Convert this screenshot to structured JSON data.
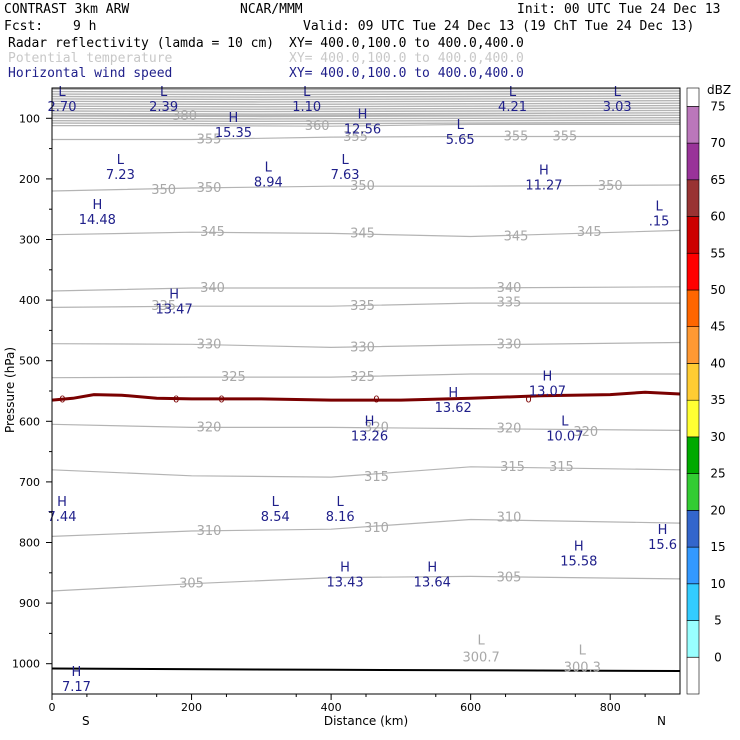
{
  "header": {
    "model": "CONTRAST  3km ARW",
    "center": "NCAR/MMM",
    "init": "Init: 00 UTC Tue 24 Dec 13",
    "fcst_label": "Fcst:",
    "fcst_value": "9 h",
    "valid": "Valid: 09 UTC Tue 24 Dec 13 (19 ChT Tue 24 Dec 13)"
  },
  "legend": [
    {
      "name": "Radar reflectivity (lamda = 10 cm)",
      "xy": "XY= 400.0,100.0 to 400.0,400.0",
      "color": "#000000"
    },
    {
      "name": "Potential temperature",
      "xy": "XY= 400.0,100.0 to 400.0,400.0",
      "color": "#c8c8c8"
    },
    {
      "name": "Horizontal wind speed",
      "xy": "XY= 400.0,100.0 to 400.0,400.0",
      "color": "#1f1f8a"
    }
  ],
  "chart_data": {
    "type": "cross-section",
    "xlabel": "Distance (km)",
    "ylabel": "Pressure (hPa)",
    "xlim": [
      0,
      900
    ],
    "ylim": [
      1050,
      50
    ],
    "x_ticks": [
      0,
      200,
      400,
      600,
      800
    ],
    "y_ticks": [
      100,
      200,
      300,
      400,
      500,
      600,
      700,
      800,
      900,
      1000
    ],
    "x_endpoints": {
      "left": "S",
      "right": "N"
    },
    "colorbar": {
      "unit": "dBZ",
      "levels": [
        0,
        5,
        10,
        15,
        20,
        25,
        30,
        35,
        40,
        45,
        50,
        55,
        60,
        65,
        70,
        75
      ],
      "colors": [
        "#ffffff",
        "#99ffff",
        "#33ccff",
        "#3399ff",
        "#3366cc",
        "#33cc33",
        "#00aa00",
        "#ffff33",
        "#ffcc33",
        "#ff9933",
        "#ff6600",
        "#ff0000",
        "#cc0000",
        "#993333",
        "#993399",
        "#bb77bb"
      ]
    },
    "theta_contours": [
      {
        "value": 305,
        "labels": [
          [
            200,
            868
          ],
          [
            655,
            858
          ]
        ],
        "points": [
          [
            0,
            880
          ],
          [
            200,
            868
          ],
          [
            400,
            858
          ],
          [
            600,
            856
          ],
          [
            900,
            860
          ]
        ]
      },
      {
        "value": 310,
        "labels": [
          [
            225,
            781
          ],
          [
            465,
            776
          ],
          [
            655,
            759
          ]
        ],
        "points": [
          [
            0,
            790
          ],
          [
            200,
            781
          ],
          [
            400,
            778
          ],
          [
            600,
            762
          ],
          [
            900,
            768
          ]
        ]
      },
      {
        "value": 315,
        "labels": [
          [
            465,
            692
          ],
          [
            660,
            675
          ],
          [
            730,
            675
          ]
        ],
        "points": [
          [
            0,
            680
          ],
          [
            200,
            690
          ],
          [
            400,
            692
          ],
          [
            600,
            675
          ],
          [
            900,
            680
          ]
        ]
      },
      {
        "value": 320,
        "labels": [
          [
            225,
            610
          ],
          [
            465,
            610
          ],
          [
            655,
            612
          ],
          [
            765,
            618
          ]
        ],
        "points": [
          [
            0,
            605
          ],
          [
            200,
            610
          ],
          [
            400,
            610
          ],
          [
            600,
            612
          ],
          [
            900,
            615
          ]
        ]
      },
      {
        "value": 325,
        "labels": [
          [
            260,
            527
          ],
          [
            445,
            527
          ]
        ],
        "points": [
          [
            0,
            528
          ],
          [
            200,
            527
          ],
          [
            400,
            527
          ],
          [
            600,
            522
          ],
          [
            900,
            522
          ]
        ]
      },
      {
        "value": 330,
        "labels": [
          [
            225,
            473
          ],
          [
            445,
            478
          ],
          [
            655,
            473
          ]
        ],
        "points": [
          [
            0,
            472
          ],
          [
            200,
            473
          ],
          [
            400,
            478
          ],
          [
            600,
            474
          ],
          [
            900,
            470
          ]
        ]
      },
      {
        "value": 335,
        "labels": [
          [
            160,
            410
          ],
          [
            445,
            410
          ],
          [
            655,
            404
          ]
        ],
        "points": [
          [
            0,
            412
          ],
          [
            200,
            410
          ],
          [
            400,
            410
          ],
          [
            600,
            405
          ],
          [
            900,
            405
          ]
        ]
      },
      {
        "value": 340,
        "labels": [
          [
            230,
            380
          ],
          [
            655,
            380
          ]
        ],
        "points": [
          [
            0,
            385
          ],
          [
            200,
            380
          ],
          [
            400,
            380
          ],
          [
            600,
            380
          ],
          [
            900,
            378
          ]
        ]
      },
      {
        "value": 345,
        "labels": [
          [
            230,
            288
          ],
          [
            445,
            290
          ],
          [
            665,
            295
          ],
          [
            770,
            288
          ]
        ],
        "points": [
          [
            0,
            292
          ],
          [
            200,
            288
          ],
          [
            400,
            290
          ],
          [
            600,
            295
          ],
          [
            900,
            285
          ]
        ]
      },
      {
        "value": 350,
        "labels": [
          [
            160,
            218
          ],
          [
            225,
            215
          ],
          [
            445,
            212
          ],
          [
            800,
            212
          ]
        ],
        "points": [
          [
            0,
            220
          ],
          [
            200,
            215
          ],
          [
            400,
            212
          ],
          [
            600,
            212
          ],
          [
            900,
            210
          ]
        ]
      },
      {
        "value": 355,
        "labels": [
          [
            225,
            135
          ],
          [
            435,
            131
          ],
          [
            665,
            130
          ],
          [
            735,
            130
          ]
        ],
        "points": [
          [
            0,
            135
          ],
          [
            200,
            135
          ],
          [
            400,
            131
          ],
          [
            600,
            130
          ],
          [
            900,
            130
          ]
        ]
      },
      {
        "value": 360,
        "labels": [
          [
            380,
            113
          ]
        ],
        "points": [
          [
            0,
            112
          ],
          [
            200,
            112
          ],
          [
            400,
            113
          ],
          [
            600,
            110
          ],
          [
            900,
            110
          ]
        ]
      },
      {
        "value": 380,
        "labels": [
          [
            190,
            96
          ]
        ],
        "points": [
          [
            0,
            95
          ],
          [
            900,
            95
          ]
        ]
      }
    ],
    "theta_extrema": [
      {
        "type": "L",
        "value": "300.7",
        "x": 615,
        "p": 968
      },
      {
        "type": "L",
        "value": "300.3",
        "x": 760,
        "p": 985
      }
    ],
    "reflectivity_zero_line": {
      "value": 0,
      "points": [
        [
          0,
          565
        ],
        [
          30,
          562
        ],
        [
          60,
          556
        ],
        [
          100,
          557
        ],
        [
          150,
          562
        ],
        [
          200,
          563
        ],
        [
          300,
          563
        ],
        [
          400,
          565
        ],
        [
          500,
          565
        ],
        [
          600,
          562
        ],
        [
          700,
          558
        ],
        [
          800,
          556
        ],
        [
          850,
          552
        ],
        [
          900,
          555
        ]
      ]
    },
    "surface_line": {
      "points": [
        [
          0,
          1008
        ],
        [
          400,
          1010
        ],
        [
          900,
          1012
        ]
      ]
    },
    "wind_extrema": [
      {
        "type": "L",
        "value": "2.70",
        "x": 0,
        "p": 63
      },
      {
        "type": "L",
        "value": "2.39",
        "x": 160,
        "p": 63
      },
      {
        "type": "L",
        "value": "1.10",
        "x": 365,
        "p": 63
      },
      {
        "type": "L",
        "value": "4.21",
        "x": 660,
        "p": 63
      },
      {
        "type": "L",
        "value": "3.03",
        "x": 810,
        "p": 63
      },
      {
        "type": "H",
        "value": "15.35",
        "x": 260,
        "p": 106
      },
      {
        "type": "H",
        "value": "12.56",
        "x": 445,
        "p": 100
      },
      {
        "type": "L",
        "value": "5.65",
        "x": 585,
        "p": 118
      },
      {
        "type": "L",
        "value": "7.23",
        "x": 98,
        "p": 175
      },
      {
        "type": "L",
        "value": "8.94",
        "x": 310,
        "p": 188
      },
      {
        "type": "L",
        "value": "7.63",
        "x": 420,
        "p": 175
      },
      {
        "type": "H",
        "value": "11.27",
        "x": 705,
        "p": 193
      },
      {
        "type": "H",
        "value": "14.48",
        "x": 65,
        "p": 250
      },
      {
        "type": "L",
        "value": ".15",
        "x": 870,
        "p": 252
      },
      {
        "type": "H",
        "value": "13.47",
        "x": 175,
        "p": 397
      },
      {
        "type": "H",
        "value": "13.07",
        "x": 710,
        "p": 533
      },
      {
        "type": "H",
        "value": "13.62",
        "x": 575,
        "p": 560
      },
      {
        "type": "H",
        "value": "13.26",
        "x": 455,
        "p": 607
      },
      {
        "type": "L",
        "value": "10.07",
        "x": 735,
        "p": 607
      },
      {
        "type": "H",
        "value": "7.44",
        "x": 0,
        "p": 740
      },
      {
        "type": "L",
        "value": "8.54",
        "x": 320,
        "p": 740
      },
      {
        "type": "L",
        "value": "8.16",
        "x": 413,
        "p": 740
      },
      {
        "type": "H",
        "value": "15.6",
        "x": 875,
        "p": 786
      },
      {
        "type": "H",
        "value": "15.58",
        "x": 755,
        "p": 813
      },
      {
        "type": "H",
        "value": "13.43",
        "x": 420,
        "p": 848
      },
      {
        "type": "H",
        "value": "13.64",
        "x": 545,
        "p": 848
      },
      {
        "type": "H",
        "value": "7.17",
        "x": 35,
        "p": 1020
      }
    ]
  }
}
